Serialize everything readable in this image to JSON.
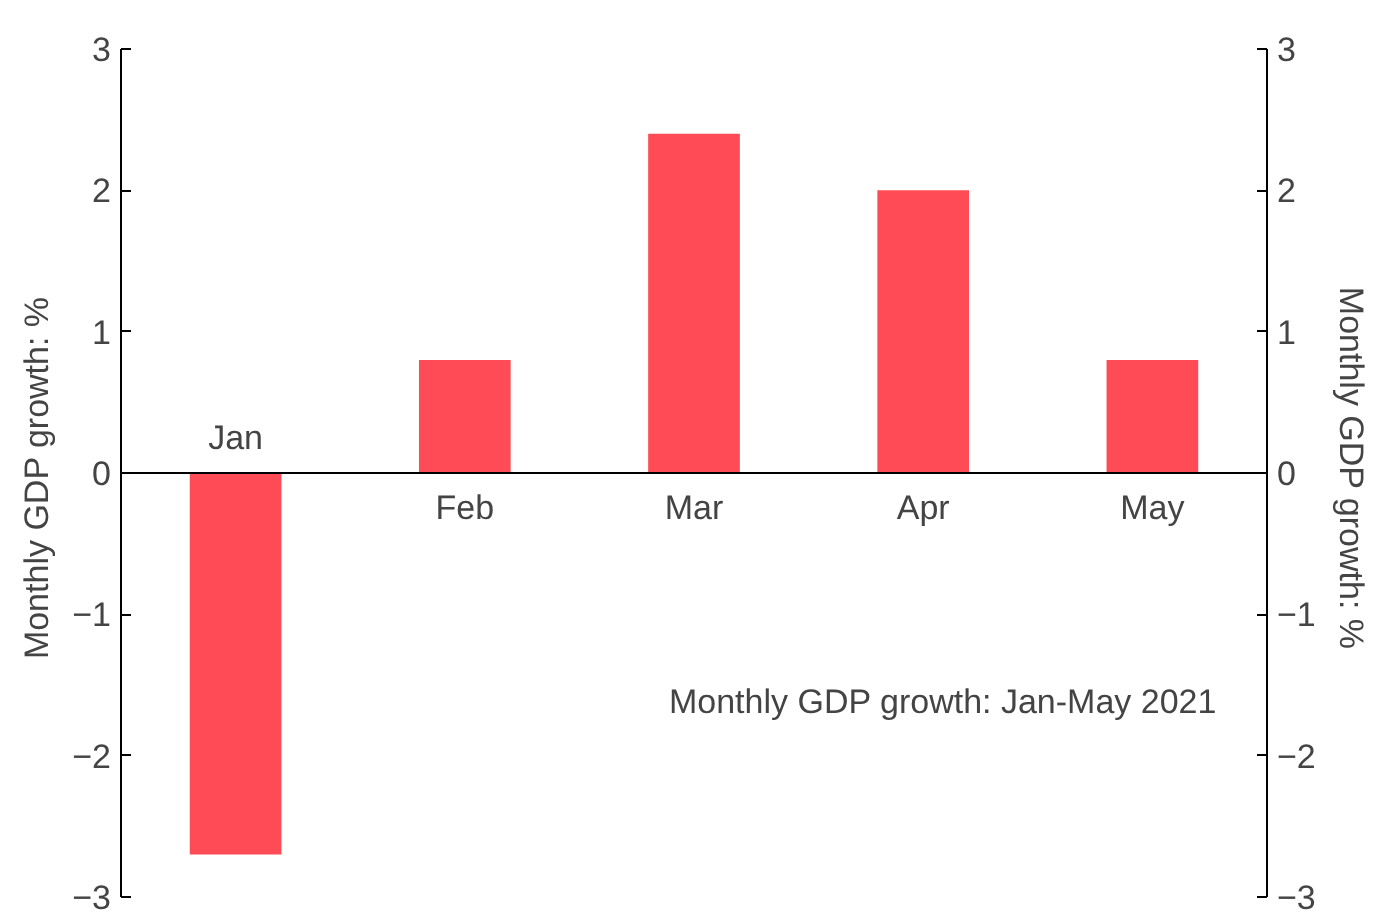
{
  "chart_data": {
    "type": "bar",
    "categories": [
      "Jan",
      "Feb",
      "Mar",
      "Apr",
      "May"
    ],
    "values": [
      -2.7,
      0.8,
      2.4,
      2.0,
      0.8
    ],
    "color": "#ff4b55",
    "ylim": [
      -3,
      3
    ],
    "yticks": [
      -3,
      -2,
      -1,
      0,
      1,
      2,
      3
    ],
    "y2lim": [
      -3,
      3
    ],
    "y2ticks": [
      -3,
      -2,
      -1,
      0,
      1,
      2,
      3
    ],
    "ylabel": "Monthly GDP growth:  %",
    "y2label": "Monthly GDP growth:  %",
    "annotations": [
      "Monthly GDP growth: Jan-May 2021"
    ]
  }
}
